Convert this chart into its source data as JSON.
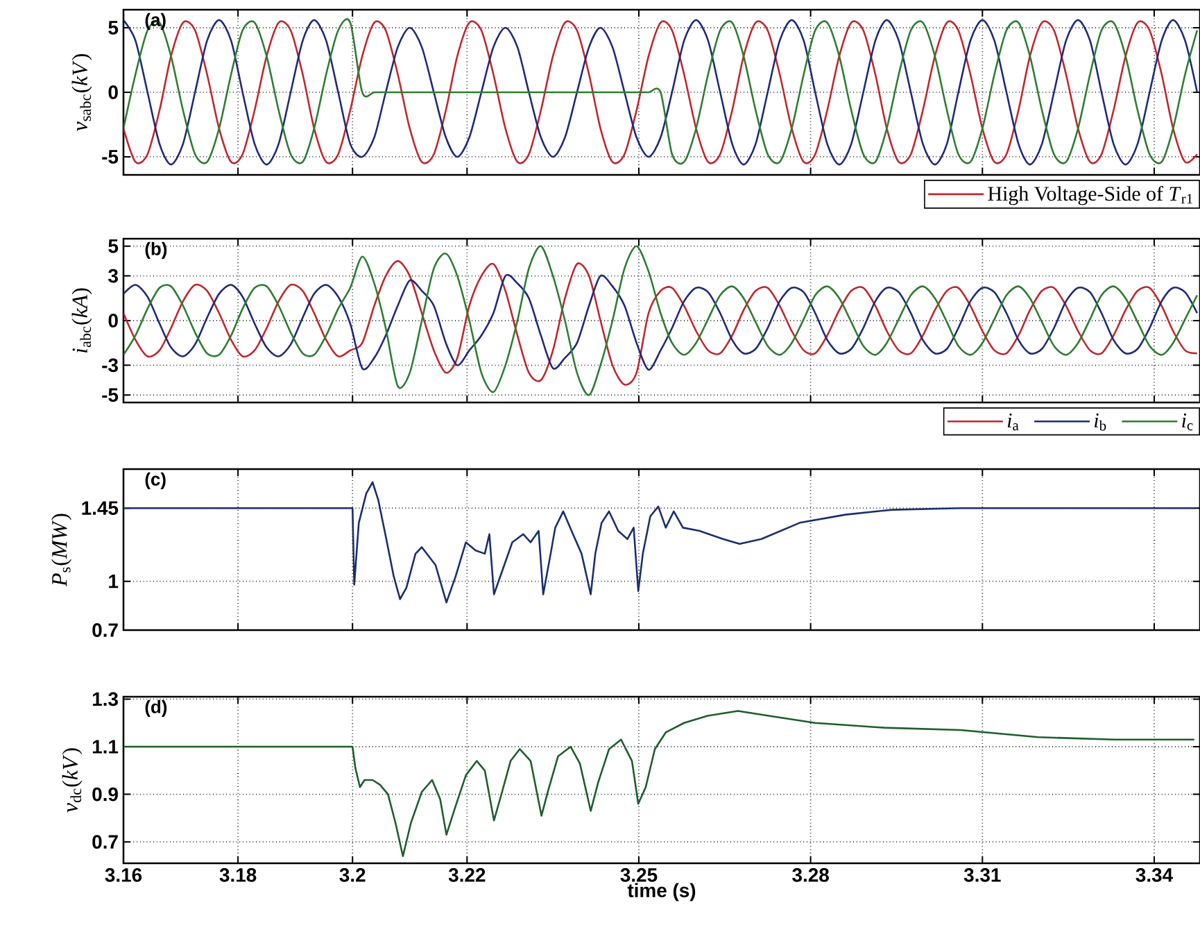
{
  "chart_data": [
    {
      "type": "line",
      "ylabel": "*v*$_{sabc}$(*kV*)",
      "annotations": [
        "(a)"
      ],
      "xlim": [
        3.16,
        3.348
      ],
      "xticks": [
        3.16,
        3.18,
        3.2,
        3.22,
        3.25,
        3.28,
        3.31,
        3.34
      ],
      "ylim": [
        -6.4,
        6.4
      ],
      "yticks": [
        -5,
        0,
        5
      ],
      "grid": true,
      "legend": "bottom right",
      "tick_labels": "y",
      "x": [
        3.16,
        3.1621,
        3.1642,
        3.1663,
        3.1683,
        3.1704,
        3.1725,
        3.1746,
        3.1767,
        3.1788,
        3.1808,
        3.1829,
        3.185,
        3.1871,
        3.1892,
        3.1913,
        3.1933,
        3.1954,
        3.1975,
        3.1996,
        3.2017,
        3.2038,
        3.2058,
        3.2079,
        3.21,
        3.2121,
        3.2142,
        3.2163,
        3.2183,
        3.2204,
        3.2225,
        3.2246,
        3.2267,
        3.2288,
        3.2308,
        3.2329,
        3.235,
        3.2371,
        3.2392,
        3.2413,
        3.2433,
        3.2454,
        3.2475,
        3.2496,
        3.2517,
        3.2538,
        3.2558,
        3.2579,
        3.26,
        3.2621,
        3.2642,
        3.2663,
        3.2683,
        3.2704,
        3.2725,
        3.2746,
        3.2767,
        3.2788,
        3.2808,
        3.2829,
        3.285,
        3.2871,
        3.2892,
        3.2913,
        3.2933,
        3.2954,
        3.2975,
        3.2996,
        3.3017,
        3.3038,
        3.3058,
        3.3079,
        3.31,
        3.3121,
        3.3142,
        3.3163,
        3.3183,
        3.3204,
        3.3225,
        3.3246,
        3.3267,
        3.3288,
        3.3308,
        3.3329,
        3.335,
        3.3371,
        3.3392,
        3.3413,
        3.3433,
        3.3454,
        3.3475
      ],
      "series": [
        {
          "name": "High Voltage-Side of *T*$_{r1}$",
          "color": "#c0272d",
          "values": [
            -2.8,
            -5.4,
            -4.8,
            -1.4,
            2.8,
            5.4,
            4.8,
            1.4,
            -2.8,
            -5.4,
            -4.8,
            -1.4,
            2.8,
            5.4,
            4.8,
            1.4,
            -2.8,
            -5.4,
            -4.8,
            -1.4,
            2.8,
            5.4,
            4.8,
            1.4,
            -2.8,
            -5.4,
            -4.8,
            -1.4,
            2.8,
            5.4,
            4.8,
            1.4,
            -2.8,
            -5.4,
            -4.8,
            -1.4,
            2.8,
            5.4,
            4.8,
            1.4,
            -2.8,
            -5.4,
            -4.8,
            -1.4,
            2.8,
            5.4,
            4.8,
            1.4,
            -2.8,
            -5.4,
            -4.8,
            -1.4,
            2.8,
            5.4,
            4.8,
            1.4,
            -2.8,
            -5.4,
            -4.8,
            -1.4,
            2.8,
            5.4,
            4.8,
            1.4,
            -2.8,
            -5.4,
            -4.8,
            -1.4,
            2.8,
            5.4,
            4.8,
            1.4,
            -2.8,
            -5.4,
            -4.8,
            -1.4,
            2.8,
            5.4,
            4.8,
            1.4,
            -2.8,
            -5.4,
            -4.8,
            -1.4,
            2.8,
            5.4,
            4.8,
            1.4,
            -2.8,
            -5.4,
            -4.8
          ]
        },
        {
          "color": "#1f2a7a",
          "values": [
            5.6,
            4,
            0,
            -4,
            -5.6,
            -4,
            0,
            4,
            5.6,
            4,
            0,
            -4,
            -5.6,
            -4,
            0,
            4,
            5.6,
            4,
            0,
            -4,
            -5,
            -3.5,
            0,
            3.5,
            5,
            3.5,
            0,
            -3.5,
            -5,
            -3.5,
            0,
            3.5,
            5,
            3.5,
            0,
            -3.5,
            -5,
            -3.5,
            0,
            3.5,
            5,
            3.5,
            0,
            -3.5,
            -5,
            -3.5,
            0,
            4,
            5.6,
            4,
            0,
            -4,
            -5.6,
            -4,
            0,
            4,
            5.6,
            4,
            0,
            -4,
            -5.6,
            -4,
            0,
            4,
            5.6,
            4,
            0,
            -4,
            -5.6,
            -4,
            0,
            4,
            5.6,
            4,
            0,
            -4,
            -5.6,
            -4,
            0,
            4,
            5.6,
            4,
            0,
            -4,
            -5.6,
            -4,
            0,
            4,
            5.6,
            4,
            0
          ]
        },
        {
          "color": "#2e7d32",
          "values": [
            -2.8,
            1.4,
            4.8,
            5.4,
            2.8,
            -1.4,
            -4.8,
            -5.4,
            -2.8,
            1.4,
            4.8,
            5.4,
            2.8,
            -1.4,
            -4.8,
            -5.4,
            -2.8,
            1.4,
            4.8,
            5.4,
            0,
            0,
            0,
            0,
            0,
            0,
            0,
            0,
            0,
            0,
            0,
            0,
            0,
            0,
            0,
            0,
            0,
            0,
            0,
            0,
            0,
            0,
            0,
            0,
            0,
            0,
            -4.8,
            -5.4,
            -2.8,
            1.4,
            4.8,
            5.4,
            2.8,
            -1.4,
            -4.8,
            -5.4,
            -2.8,
            1.4,
            4.8,
            5.4,
            2.8,
            -1.4,
            -4.8,
            -5.4,
            -2.8,
            1.4,
            4.8,
            5.4,
            2.8,
            -1.4,
            -4.8,
            -5.4,
            -2.8,
            1.4,
            4.8,
            5.4,
            2.8,
            -1.4,
            -4.8,
            -5.4,
            -2.8,
            1.4,
            4.8,
            5.4,
            2.8,
            -1.4,
            -4.8,
            -5.4,
            -2.8,
            1.4,
            4.8
          ]
        }
      ]
    },
    {
      "type": "line",
      "ylabel": "*i*$_{abc}$(*kA*)",
      "annotations": [
        "(b)"
      ],
      "xlim": [
        3.16,
        3.348
      ],
      "xticks": [
        3.16,
        3.18,
        3.2,
        3.22,
        3.25,
        3.28,
        3.31,
        3.34
      ],
      "ylim": [
        -5.5,
        5.5
      ],
      "yticks": [
        -5,
        -3,
        0,
        3,
        5
      ],
      "grid": true,
      "legend": "bottom right",
      "tick_labels": "y",
      "x": [
        3.16,
        3.1621,
        3.1642,
        3.1663,
        3.1683,
        3.1704,
        3.1725,
        3.1746,
        3.1767,
        3.1788,
        3.1808,
        3.1829,
        3.185,
        3.1871,
        3.1892,
        3.1913,
        3.1933,
        3.1954,
        3.1975,
        3.1996,
        3.2017,
        3.2038,
        3.2058,
        3.2079,
        3.21,
        3.2121,
        3.2142,
        3.2163,
        3.2183,
        3.2204,
        3.2225,
        3.2246,
        3.2267,
        3.2288,
        3.2308,
        3.2329,
        3.235,
        3.2371,
        3.2392,
        3.2413,
        3.2433,
        3.2454,
        3.2475,
        3.2496,
        3.2517,
        3.2538,
        3.2558,
        3.2579,
        3.26,
        3.2621,
        3.2642,
        3.2663,
        3.2683,
        3.2704,
        3.2725,
        3.2746,
        3.2767,
        3.2788,
        3.2808,
        3.2829,
        3.285,
        3.2871,
        3.2892,
        3.2913,
        3.2933,
        3.2954,
        3.2975,
        3.2996,
        3.3017,
        3.3038,
        3.3058,
        3.3079,
        3.31,
        3.3121,
        3.3142,
        3.3163,
        3.3183,
        3.3204,
        3.3225,
        3.3246,
        3.3267,
        3.3288,
        3.3308,
        3.3329,
        3.335,
        3.3371,
        3.3392,
        3.3413,
        3.3433,
        3.3454,
        3.3475
      ],
      "series": [
        {
          "name": "*i*$_{a}$",
          "color": "#c0272d",
          "values": [
            0.5,
            -1.3,
            -2.4,
            -2,
            -0.5,
            1.3,
            2.4,
            2,
            0.5,
            -1.3,
            -2.4,
            -2,
            -0.5,
            1.3,
            2.4,
            2,
            0.5,
            -1.3,
            -2.4,
            -2,
            -1.5,
            1,
            3,
            4,
            3,
            0.5,
            -2,
            -3.5,
            -2.5,
            1,
            3,
            3.8,
            2,
            -1,
            -3.5,
            -4,
            -2,
            1.5,
            3.8,
            3,
            0,
            -3,
            -4.3,
            -3.5,
            0.5,
            2,
            2.2,
            1,
            -0.7,
            -2,
            -2.2,
            -1,
            0.7,
            2,
            2.2,
            1,
            -0.7,
            -2,
            -2.2,
            -1,
            0.7,
            2,
            2.2,
            1,
            -0.7,
            -2,
            -2.2,
            -1,
            0.7,
            2,
            2.2,
            1,
            -0.7,
            -2,
            -2.2,
            -1,
            0.7,
            2,
            2.2,
            1,
            -0.7,
            -2,
            -2.2,
            -1,
            0.7,
            2,
            2.2,
            1,
            -0.7,
            -2,
            -2.2
          ]
        },
        {
          "name": "*i*$_{b}$",
          "color": "#1f2a7a",
          "values": [
            1.8,
            2.4,
            1.6,
            -0.2,
            -1.8,
            -2.4,
            -1.6,
            0.2,
            1.8,
            2.4,
            1.6,
            -0.2,
            -1.8,
            -2.4,
            -1.6,
            0.2,
            1.8,
            2.4,
            1.6,
            -0.2,
            -3.2,
            -2.5,
            -1,
            1,
            2.7,
            2,
            1,
            -1.5,
            -3,
            -2,
            -1,
            0.5,
            3,
            2.5,
            1.5,
            -1,
            -3.2,
            -2.5,
            -1.5,
            1,
            3,
            2.3,
            1,
            -1.5,
            -3.3,
            -2,
            -0.5,
            1.3,
            2.2,
            1.9,
            0.5,
            -1.3,
            -2.2,
            -1.9,
            -0.5,
            1.3,
            2.2,
            1.9,
            0.5,
            -1.3,
            -2.2,
            -1.9,
            -0.5,
            1.3,
            2.2,
            1.9,
            0.5,
            -1.3,
            -2.2,
            -1.9,
            -0.5,
            1.3,
            2.2,
            1.9,
            0.5,
            -1.3,
            -2.2,
            -1.9,
            -0.5,
            1.3,
            2.2,
            1.9,
            0.5,
            -1.3,
            -2.2,
            -1.9,
            -0.5,
            1.3,
            2.2,
            1.9,
            0.5
          ]
        },
        {
          "name": "*i*$_{c}$",
          "color": "#2e7d32",
          "values": [
            -2.3,
            -1,
            0.8,
            2.2,
            2.3,
            1,
            -0.8,
            -2.2,
            -2.3,
            -1,
            0.8,
            2.2,
            2.3,
            1,
            -0.8,
            -2.2,
            -2.3,
            -1,
            0.8,
            2.2,
            4.3,
            2.5,
            -0.5,
            -4.4,
            -3.5,
            0,
            3.5,
            4.5,
            3,
            0,
            -3.5,
            -4.8,
            -3,
            0,
            3.5,
            5,
            3,
            0,
            -3.5,
            -5,
            -3,
            0,
            3.5,
            5,
            3.3,
            0.5,
            -1.5,
            -2.3,
            -1.5,
            0.1,
            1.7,
            2.3,
            1.5,
            -0.1,
            -1.7,
            -2.3,
            -1.5,
            0.1,
            1.7,
            2.3,
            1.5,
            -0.1,
            -1.7,
            -2.3,
            -1.5,
            0.1,
            1.7,
            2.3,
            1.5,
            -0.1,
            -1.7,
            -2.3,
            -1.5,
            0.1,
            1.7,
            2.3,
            1.5,
            -0.1,
            -1.7,
            -2.3,
            -1.5,
            0.1,
            1.7,
            2.3,
            1.5,
            -0.1,
            -1.7,
            -2.3,
            -1.5,
            0.1,
            1.7
          ]
        }
      ]
    },
    {
      "type": "line",
      "ylabel": "*P*$_{s}$(*MW*)",
      "annotations": [
        "(c)"
      ],
      "xlim": [
        3.16,
        3.348
      ],
      "xticks": [
        3.16,
        3.18,
        3.2,
        3.22,
        3.25,
        3.28,
        3.31,
        3.34
      ],
      "ylim": [
        0.7,
        1.69
      ],
      "yticks": [
        0.7,
        1,
        1.45
      ],
      "grid": true,
      "tick_labels": "y",
      "x": [
        3.16,
        3.17,
        3.18,
        3.19,
        3.2,
        3.2003,
        3.2011,
        3.2024,
        3.2035,
        3.2045,
        3.2059,
        3.2072,
        3.2083,
        3.2094,
        3.211,
        3.2121,
        3.2134,
        3.2145,
        3.2164,
        3.218,
        3.2198,
        3.2215,
        3.2231,
        3.2239,
        3.2247,
        3.2263,
        3.2279,
        3.2298,
        3.2311,
        3.2325,
        3.2333,
        3.2346,
        3.2354,
        3.2368,
        3.2385,
        3.24,
        3.2416,
        3.2424,
        3.2435,
        3.2448,
        3.2464,
        3.248,
        3.2491,
        3.2499,
        3.2507,
        3.252,
        3.2534,
        3.2547,
        3.2561,
        3.2577,
        3.2606,
        3.2647,
        3.2676,
        3.2714,
        3.2781,
        3.2861,
        3.2942,
        3.3062,
        3.32,
        3.335,
        3.347
      ],
      "series": [
        {
          "color": "#1a2f6e",
          "values": [
            1.45,
            1.45,
            1.45,
            1.45,
            1.45,
            0.98,
            1.36,
            1.54,
            1.61,
            1.5,
            1.26,
            1.03,
            0.89,
            0.96,
            1.17,
            1.21,
            1.15,
            1.1,
            0.87,
            1.03,
            1.24,
            1.19,
            1.17,
            1.29,
            0.92,
            1.08,
            1.24,
            1.29,
            1.24,
            1.31,
            0.92,
            1.17,
            1.33,
            1.43,
            1.29,
            1.17,
            0.92,
            1.17,
            1.36,
            1.43,
            1.31,
            1.26,
            1.33,
            0.94,
            1.17,
            1.4,
            1.46,
            1.33,
            1.43,
            1.33,
            1.31,
            1.26,
            1.23,
            1.26,
            1.36,
            1.41,
            1.44,
            1.45,
            1.45,
            1.45,
            1.45
          ]
        }
      ]
    },
    {
      "type": "line",
      "xlabel": "time  (s)",
      "ylabel": "*v*$_{dc}$(*kV*)",
      "annotations": [
        "(d)"
      ],
      "xlim": [
        3.16,
        3.348
      ],
      "xticks": [
        3.16,
        3.18,
        3.2,
        3.22,
        3.25,
        3.28,
        3.31,
        3.34
      ],
      "ylim": [
        0.61,
        1.31
      ],
      "yticks": [
        0.7,
        0.9,
        1.1,
        1.3
      ],
      "grid": true,
      "x": [
        3.16,
        3.17,
        3.18,
        3.19,
        3.2,
        3.2005,
        3.2013,
        3.2021,
        3.2035,
        3.2048,
        3.2062,
        3.2075,
        3.2088,
        3.2102,
        3.2121,
        3.2139,
        3.2153,
        3.2164,
        3.218,
        3.2198,
        3.2217,
        3.2231,
        3.2247,
        3.226,
        3.2276,
        3.2292,
        3.2311,
        3.233,
        3.2341,
        3.2359,
        3.2381,
        3.2397,
        3.2416,
        3.2429,
        3.2448,
        3.2469,
        3.2488,
        3.2499,
        3.2512,
        3.2528,
        3.2547,
        3.2579,
        3.262,
        3.2673,
        3.2727,
        3.2808,
        3.2928,
        3.3062,
        3.3197,
        3.3331,
        3.347
      ],
      "series": [
        {
          "color": "#1e5e2a",
          "values": [
            1.1,
            1.1,
            1.1,
            1.1,
            1.1,
            1.01,
            0.93,
            0.96,
            0.96,
            0.94,
            0.9,
            0.78,
            0.64,
            0.78,
            0.91,
            0.96,
            0.88,
            0.73,
            0.85,
            0.98,
            1.04,
            1.0,
            0.79,
            0.9,
            1.04,
            1.09,
            1.04,
            0.81,
            0.91,
            1.06,
            1.1,
            1.03,
            0.83,
            0.95,
            1.09,
            1.13,
            1.04,
            0.86,
            0.93,
            1.09,
            1.16,
            1.2,
            1.23,
            1.25,
            1.23,
            1.2,
            1.18,
            1.17,
            1.14,
            1.13,
            1.13
          ]
        }
      ]
    }
  ]
}
